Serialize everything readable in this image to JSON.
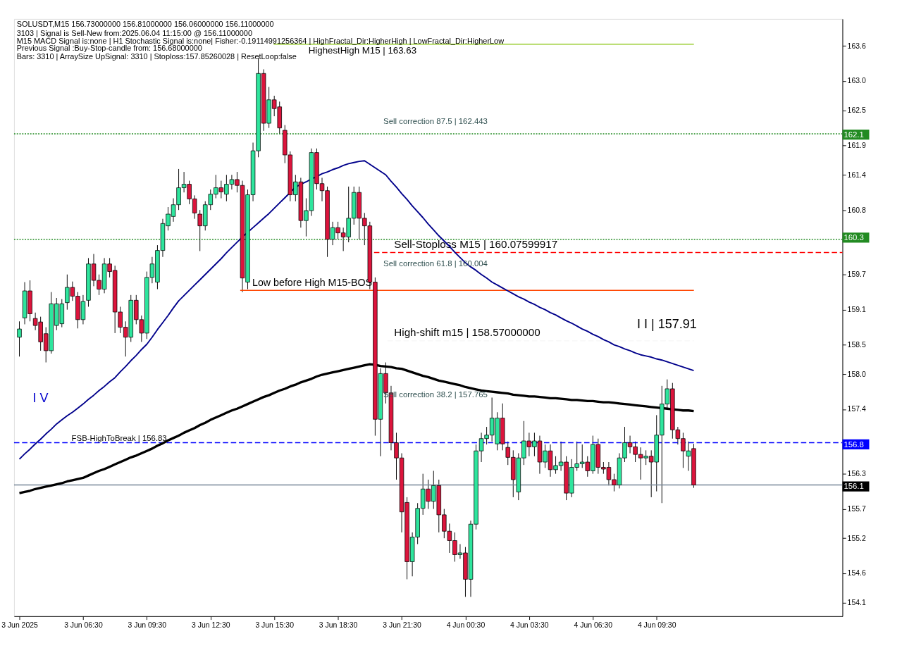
{
  "chart_data": {
    "type": "candlestick",
    "title": "SOLUSDT,M15  156.73000000 156.81000000 156.06000000 156.11000000",
    "categories": [
      "3 Jun 2025",
      null,
      null,
      null,
      null,
      null,
      null,
      null,
      null,
      null,
      null,
      null,
      "3 Jun 06:30",
      null,
      null,
      null,
      null,
      null,
      null,
      null,
      null,
      null,
      null,
      null,
      "3 Jun 09:30",
      null,
      null,
      null,
      null,
      null,
      null,
      null,
      null,
      null,
      null,
      null,
      "3 Jun 12:30",
      null,
      null,
      null,
      null,
      null,
      null,
      null,
      null,
      null,
      null,
      null,
      "3 Jun 15:30",
      null,
      null,
      null,
      null,
      null,
      null,
      null,
      null,
      null,
      null,
      null,
      "3 Jun 18:30",
      null,
      null,
      null,
      null,
      null,
      null,
      null,
      null,
      null,
      null,
      null,
      "3 Jun 21:30",
      null,
      null,
      null,
      null,
      null,
      null,
      null,
      null,
      null,
      null,
      null,
      "4 Jun 00:30",
      null,
      null,
      null,
      null,
      null,
      null,
      null,
      null,
      null,
      null,
      null,
      "4 Jun 03:30",
      null,
      null,
      null,
      null,
      null,
      null,
      null,
      null,
      null,
      null,
      null,
      "4 Jun 06:30",
      null,
      null,
      null,
      null,
      null,
      null,
      null,
      null,
      null,
      null,
      null,
      "4 Jun 09:30",
      null,
      null,
      null,
      null,
      null,
      null,
      null
    ],
    "ohlc": [
      [
        158.63,
        158.9,
        158.3,
        158.77
      ],
      [
        158.96,
        159.57,
        158.85,
        159.42
      ],
      [
        159.42,
        159.6,
        158.9,
        159.03
      ],
      [
        158.95,
        159.05,
        158.75,
        158.83
      ],
      [
        158.89,
        158.98,
        158.4,
        158.55
      ],
      [
        158.69,
        158.8,
        158.2,
        158.4
      ],
      [
        158.4,
        159.4,
        158.35,
        159.2
      ],
      [
        158.83,
        159.3,
        158.75,
        159.2
      ],
      [
        158.86,
        159.28,
        158.8,
        159.2
      ],
      [
        159.22,
        159.7,
        159.1,
        159.48
      ],
      [
        159.48,
        159.58,
        159.25,
        159.33
      ],
      [
        159.33,
        159.4,
        158.78,
        158.93
      ],
      [
        158.93,
        159.35,
        158.85,
        159.24
      ],
      [
        159.26,
        159.98,
        159.15,
        159.88
      ],
      [
        159.88,
        160.05,
        159.5,
        159.6
      ],
      [
        159.6,
        159.7,
        159.35,
        159.45
      ],
      [
        159.45,
        159.98,
        159.38,
        159.88
      ],
      [
        159.88,
        159.98,
        159.65,
        159.75
      ],
      [
        159.77,
        159.85,
        158.7,
        159.06
      ],
      [
        159.06,
        159.15,
        158.7,
        158.8
      ],
      [
        158.8,
        158.9,
        158.3,
        158.63
      ],
      [
        158.63,
        159.35,
        158.55,
        159.26
      ],
      [
        159.26,
        159.35,
        158.85,
        158.93
      ],
      [
        158.93,
        159.0,
        158.55,
        158.7
      ],
      [
        158.7,
        159.75,
        158.6,
        159.65
      ],
      [
        159.65,
        160.0,
        159.55,
        159.88
      ],
      [
        159.57,
        160.2,
        159.45,
        160.11
      ],
      [
        160.11,
        160.65,
        160.0,
        160.57
      ],
      [
        160.53,
        160.85,
        160.45,
        160.73
      ],
      [
        160.69,
        161.0,
        160.6,
        160.89
      ],
      [
        160.89,
        161.5,
        160.8,
        161.18
      ],
      [
        161.18,
        161.45,
        161.1,
        161.24
      ],
      [
        161.24,
        161.3,
        160.9,
        160.99
      ],
      [
        160.99,
        161.05,
        160.65,
        160.75
      ],
      [
        160.73,
        160.8,
        160.1,
        160.53
      ],
      [
        160.53,
        160.95,
        160.45,
        160.89
      ],
      [
        160.89,
        161.15,
        160.8,
        161.07
      ],
      [
        161.07,
        161.4,
        161.0,
        161.18
      ],
      [
        161.18,
        161.3,
        161.0,
        161.11
      ],
      [
        161.07,
        161.4,
        160.95,
        161.24
      ],
      [
        161.24,
        161.4,
        161.15,
        161.32
      ],
      [
        161.32,
        161.45,
        161.1,
        161.22
      ],
      [
        161.22,
        161.3,
        159.4,
        159.64
      ],
      [
        159.57,
        161.15,
        159.45,
        161.06
      ],
      [
        161.06,
        161.95,
        160.95,
        161.81
      ],
      [
        161.81,
        163.4,
        161.7,
        163.13
      ],
      [
        163.13,
        163.2,
        162.15,
        162.28
      ],
      [
        162.28,
        162.9,
        162.2,
        162.68
      ],
      [
        162.68,
        162.75,
        162.4,
        162.53
      ],
      [
        162.56,
        162.65,
        162.1,
        162.2
      ],
      [
        162.16,
        162.25,
        161.6,
        161.74
      ],
      [
        161.74,
        161.8,
        160.95,
        161.06
      ],
      [
        161.06,
        161.4,
        160.95,
        161.28
      ],
      [
        161.28,
        161.35,
        160.5,
        160.62
      ],
      [
        160.62,
        161.0,
        160.35,
        160.79
      ],
      [
        160.79,
        161.85,
        160.7,
        161.78
      ],
      [
        161.78,
        161.85,
        161.15,
        161.25
      ],
      [
        161.25,
        161.35,
        160.95,
        161.13
      ],
      [
        161.13,
        161.2,
        160.0,
        160.3
      ],
      [
        160.3,
        160.6,
        160.2,
        160.5
      ],
      [
        160.5,
        160.6,
        160.3,
        160.41
      ],
      [
        160.41,
        160.5,
        160.1,
        160.34
      ],
      [
        160.34,
        161.2,
        160.25,
        160.66
      ],
      [
        160.66,
        161.2,
        160.55,
        161.1
      ],
      [
        161.1,
        161.2,
        160.3,
        160.66
      ],
      [
        160.66,
        160.75,
        160.2,
        160.53
      ],
      [
        160.53,
        160.6,
        159.45,
        159.57
      ],
      [
        159.57,
        159.65,
        156.95,
        157.23
      ],
      [
        157.23,
        158.1,
        156.6,
        158.01
      ],
      [
        158.01,
        158.2,
        157.5,
        157.68
      ],
      [
        157.68,
        157.8,
        156.7,
        156.83
      ],
      [
        156.83,
        157.0,
        156.2,
        156.57
      ],
      [
        156.57,
        156.65,
        155.3,
        155.65
      ],
      [
        155.81,
        155.9,
        154.5,
        154.8
      ],
      [
        154.8,
        155.3,
        154.55,
        155.22
      ],
      [
        155.22,
        155.8,
        155.1,
        155.71
      ],
      [
        155.71,
        156.3,
        155.6,
        156.04
      ],
      [
        156.04,
        156.2,
        155.7,
        155.83
      ],
      [
        155.83,
        156.35,
        155.7,
        156.1
      ],
      [
        156.1,
        156.2,
        155.3,
        155.6
      ],
      [
        155.6,
        155.7,
        155.2,
        155.32
      ],
      [
        155.32,
        155.45,
        154.95,
        155.16
      ],
      [
        155.16,
        155.3,
        154.8,
        154.92
      ],
      [
        154.92,
        155.1,
        154.85,
        154.95
      ],
      [
        154.95,
        155.05,
        154.2,
        154.5
      ],
      [
        154.5,
        155.5,
        154.2,
        155.44
      ],
      [
        155.44,
        156.8,
        155.35,
        156.69
      ],
      [
        156.69,
        157.0,
        156.5,
        156.9
      ],
      [
        156.9,
        157.1,
        156.8,
        156.96
      ],
      [
        156.96,
        157.6,
        156.85,
        157.25
      ],
      [
        156.81,
        157.35,
        156.7,
        157.25
      ],
      [
        157.25,
        157.5,
        156.7,
        156.81
      ],
      [
        156.75,
        156.85,
        156.45,
        156.58
      ],
      [
        156.58,
        156.7,
        155.9,
        156.2
      ],
      [
        155.99,
        156.65,
        155.85,
        156.57
      ],
      [
        156.57,
        157.2,
        156.45,
        156.86
      ],
      [
        156.86,
        157.0,
        156.6,
        156.76
      ],
      [
        156.76,
        157.0,
        156.6,
        156.86
      ],
      [
        156.86,
        156.95,
        156.3,
        156.5
      ],
      [
        156.5,
        156.8,
        156.4,
        156.69
      ],
      [
        156.69,
        156.8,
        156.25,
        156.37
      ],
      [
        156.37,
        156.6,
        156.3,
        156.44
      ],
      [
        156.44,
        156.85,
        156.35,
        156.5
      ],
      [
        156.5,
        156.6,
        155.85,
        155.97
      ],
      [
        155.97,
        156.55,
        155.9,
        156.41
      ],
      [
        156.41,
        156.85,
        156.35,
        156.47
      ],
      [
        156.47,
        156.8,
        156.4,
        156.5
      ],
      [
        156.5,
        156.6,
        156.25,
        156.35
      ],
      [
        156.35,
        156.95,
        156.3,
        156.8
      ],
      [
        156.8,
        156.9,
        156.3,
        156.41
      ],
      [
        156.41,
        156.5,
        156.3,
        156.38
      ],
      [
        156.41,
        156.5,
        156.1,
        156.2
      ],
      [
        156.2,
        156.3,
        156.0,
        156.11
      ],
      [
        156.11,
        156.65,
        156.05,
        156.57
      ],
      [
        156.57,
        157.1,
        156.5,
        156.83
      ],
      [
        156.83,
        156.95,
        156.65,
        156.76
      ],
      [
        156.76,
        156.85,
        156.5,
        156.63
      ],
      [
        156.63,
        156.75,
        156.2,
        156.57
      ],
      [
        156.57,
        156.7,
        156.45,
        156.6
      ],
      [
        156.6,
        156.7,
        155.9,
        156.5
      ],
      [
        156.5,
        157.3,
        156.0,
        156.96
      ],
      [
        156.96,
        157.8,
        155.8,
        157.49
      ],
      [
        157.49,
        157.91,
        157.4,
        157.75
      ],
      [
        157.75,
        157.85,
        156.9,
        157.05
      ],
      [
        157.05,
        157.1,
        156.8,
        156.9
      ],
      [
        156.9,
        157.0,
        156.4,
        156.69
      ],
      [
        156.6,
        156.85,
        156.35,
        156.69
      ],
      [
        156.73,
        156.81,
        156.06,
        156.11
      ]
    ],
    "series": [
      {
        "type": "line",
        "color": "#00008b",
        "values": [
          156.55,
          156.64,
          156.72,
          156.81,
          156.89,
          156.98,
          157.06,
          157.15,
          157.22,
          157.29,
          157.35,
          157.42,
          157.49,
          157.57,
          157.64,
          157.72,
          157.79,
          157.87,
          157.94,
          158.04,
          158.13,
          158.23,
          158.32,
          158.42,
          158.51,
          158.63,
          158.76,
          158.88,
          159.0,
          159.13,
          159.25,
          159.34,
          159.43,
          159.52,
          159.61,
          159.7,
          159.79,
          159.88,
          159.97,
          160.07,
          160.16,
          160.25,
          160.34,
          160.42,
          160.5,
          160.58,
          160.66,
          160.74,
          160.83,
          160.92,
          161.01,
          161.1,
          161.19,
          161.24,
          161.28,
          161.33,
          161.37,
          161.42,
          161.45,
          161.49,
          161.52,
          161.56,
          161.59,
          161.61,
          161.63,
          161.64,
          161.58,
          161.52,
          161.46,
          161.4,
          161.29,
          161.19,
          161.08,
          160.98,
          160.87,
          160.77,
          160.67,
          160.56,
          160.46,
          160.36,
          160.27,
          160.18,
          160.08,
          159.99,
          159.9,
          159.83,
          159.77,
          159.7,
          159.64,
          159.57,
          159.52,
          159.47,
          159.42,
          159.37,
          159.32,
          159.28,
          159.23,
          159.19,
          159.14,
          159.1,
          159.05,
          159.01,
          158.96,
          158.91,
          158.87,
          158.82,
          158.77,
          158.73,
          158.68,
          158.64,
          158.59,
          158.55,
          158.5,
          158.47,
          158.43,
          158.4,
          158.36,
          158.33,
          158.31,
          158.29,
          158.26,
          158.24,
          158.21,
          158.18,
          158.15,
          158.12,
          158.09,
          158.06
        ]
      },
      {
        "type": "line",
        "color": "#000000",
        "values": [
          155.97,
          155.99,
          156.01,
          156.04,
          156.06,
          156.08,
          156.1,
          156.12,
          156.14,
          156.17,
          156.19,
          156.21,
          156.23,
          156.27,
          156.31,
          156.35,
          156.38,
          156.42,
          156.46,
          156.5,
          156.54,
          156.58,
          156.61,
          156.65,
          156.69,
          156.73,
          156.78,
          156.82,
          156.87,
          156.91,
          156.95,
          157.0,
          157.04,
          157.08,
          157.13,
          157.17,
          157.22,
          157.26,
          157.3,
          157.34,
          157.38,
          157.41,
          157.45,
          157.49,
          157.53,
          157.57,
          157.61,
          157.64,
          157.68,
          157.72,
          157.75,
          157.79,
          157.82,
          157.86,
          157.89,
          157.92,
          157.96,
          157.99,
          158.01,
          158.03,
          158.05,
          158.07,
          158.09,
          158.11,
          158.13,
          158.15,
          158.17,
          158.16,
          158.14,
          158.13,
          158.12,
          158.1,
          158.09,
          158.06,
          158.03,
          158.0,
          157.97,
          157.95,
          157.92,
          157.89,
          157.87,
          157.85,
          157.83,
          157.81,
          157.78,
          157.76,
          157.74,
          157.72,
          157.71,
          157.7,
          157.69,
          157.68,
          157.67,
          157.65,
          157.64,
          157.63,
          157.62,
          157.62,
          157.61,
          157.6,
          157.59,
          157.59,
          157.58,
          157.57,
          157.56,
          157.56,
          157.55,
          157.54,
          157.54,
          157.53,
          157.52,
          157.52,
          157.51,
          157.5,
          157.49,
          157.48,
          157.47,
          157.46,
          157.45,
          157.44,
          157.43,
          157.42,
          157.41,
          157.4,
          157.39,
          157.38,
          157.38,
          157.37
        ]
      }
    ],
    "ylim": [
      153.87,
      164.06
    ],
    "yticks": [
      163.6,
      {
        "value": 163.0,
        "label": "163.0"
      },
      162.5,
      161.9,
      161.4,
      160.8,
      159.7,
      159.1,
      158.5,
      {
        "value": 158.0,
        "label": "158.0"
      },
      157.4,
      156.3,
      155.7,
      155.2,
      154.6,
      154.1
    ],
    "grid": false,
    "ref_lines": [
      {
        "axis": "y",
        "value": 163.63,
        "label": "HighestHigh   M15 | 163.63",
        "color": "#9acd32",
        "line_style": "solid"
      },
      {
        "axis": "y",
        "value": 162.1,
        "color": "#228b22",
        "line_style": "dotted"
      },
      {
        "axis": "y",
        "value": 160.3,
        "color": "#228b22",
        "line_style": "dotted"
      },
      {
        "axis": "y",
        "value": 160.07599917,
        "label": "Sell-Stoploss M15 | 160.07599917",
        "color": "#ff0000",
        "line_style": "dashed"
      },
      {
        "axis": "y",
        "value": 159.43,
        "label": "Low before High   M15-BOS",
        "color": "#ff4500",
        "line_style": "solid"
      },
      {
        "axis": "y",
        "value": 158.57,
        "label": "High-shift m15 | 158.57000000",
        "color": "#f8f8f8",
        "line_style": "dashed"
      },
      {
        "axis": "y",
        "value": 156.83,
        "label": "FSB-HighToBreak | 156.83",
        "color": "#0000ff",
        "line_style": "dashed"
      },
      {
        "axis": "y",
        "value": 156.11,
        "color": "#778899",
        "line_style": "solid"
      }
    ],
    "annotations": [
      "3103 | Signal is Sell-New from:2025.06.04 11:15:00 @ 156.11000000",
      "M15 MACD Signal is:none | H1 Stochastic Signal is:none| Fisher:-0.19114991256364 | HighFractal_Dir:HigherHigh | LowFractal_Dir:HigherLow",
      "Previous Signal :Buy-Stop-candle from: 156.68000000",
      "Bars: 3310 | ArraySize UpSignal: 3310 | Stoploss:157.85260028 | ResetLoop:false",
      "Sell correction 87.5 | 162.443",
      "Sell correction 61.8 | 160.004",
      "Sell correction 38.2 | 157.765",
      "I I | 157.91",
      "I V",
      "162.1",
      "160.3",
      "156.8",
      "156.1"
    ]
  }
}
